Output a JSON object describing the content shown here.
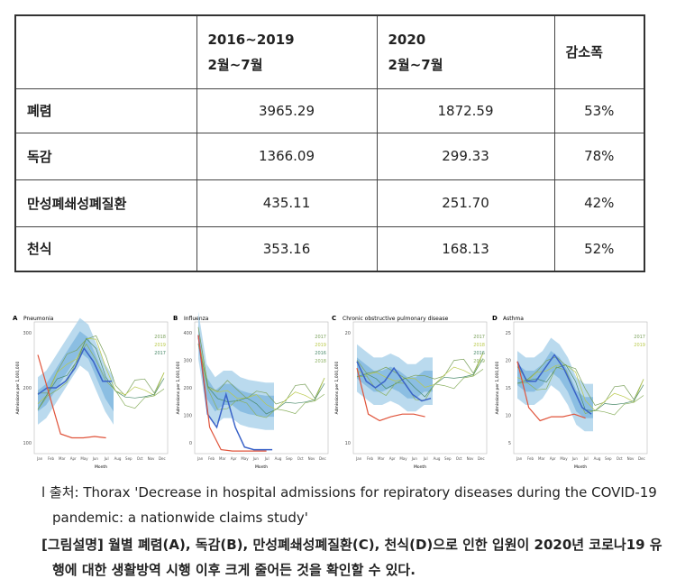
{
  "table": {
    "header": [
      [
        "2016~2019",
        "2월~7월"
      ],
      [
        "2020",
        "2월~7월"
      ],
      [
        "감소폭"
      ]
    ],
    "rows": [
      [
        "폐렴",
        "3965.29",
        "1872.59",
        "53%"
      ],
      [
        "독감",
        "1366.09",
        "299.33",
        "78%"
      ],
      [
        "만성폐쇄성폐질환",
        "435.11",
        "251.70",
        "42%"
      ],
      [
        "천식",
        "353.16",
        "168.13",
        "52%"
      ]
    ]
  },
  "figure": {
    "months": [
      "Jan",
      "Feb",
      "Mar",
      "Apr",
      "May",
      "Jun",
      "Jul",
      "Aug",
      "Sep",
      "Oct",
      "Nov",
      "Dec"
    ],
    "panels": [
      {
        "letter": "A",
        "title": "Pneumonia",
        "ylabel": "Admissions per 1,000,000",
        "xlabel": "Month",
        "yticks": [
          "300",
          "200",
          "100"
        ],
        "labels": [
          "2018",
          "2019",
          "2017"
        ]
      },
      {
        "letter": "B",
        "title": "Influenza",
        "ylabel": "Admissions per 1,000,000",
        "xlabel": "Month",
        "yticks": [
          "400",
          "300",
          "200",
          "100",
          "0"
        ],
        "labels": [
          "2017",
          "2019",
          "2016",
          "2018"
        ]
      },
      {
        "letter": "C",
        "title": "Chronic obstructive pulmonary disease",
        "ylabel": "Admissions per 1,000,000",
        "xlabel": "Month",
        "yticks": [
          "20",
          "10"
        ],
        "labels": [
          "2017",
          "2018",
          "2016",
          "2019"
        ]
      },
      {
        "letter": "D",
        "title": "Asthma",
        "ylabel": "Admissions per 1,000,000",
        "xlabel": "Month",
        "yticks": [
          "25",
          "20",
          "15",
          "10",
          "5"
        ],
        "labels": [
          "2017",
          "2019"
        ]
      }
    ]
  },
  "caption": {
    "source": "l 출처: Thorax 'Decrease in hospital admissions for repiratory diseases during the COVID-19 pandemic: a nationwide claims study'",
    "description": "[그림설명] 월별 폐렴(A), 독감(B), 만성폐쇄성폐질환(C), 천식(D)으로 인한 입원이 2020년 코로나19 유행에 대한 생활방역 시행 이후 크게 줄어든 것을 확인할 수 있다."
  }
}
